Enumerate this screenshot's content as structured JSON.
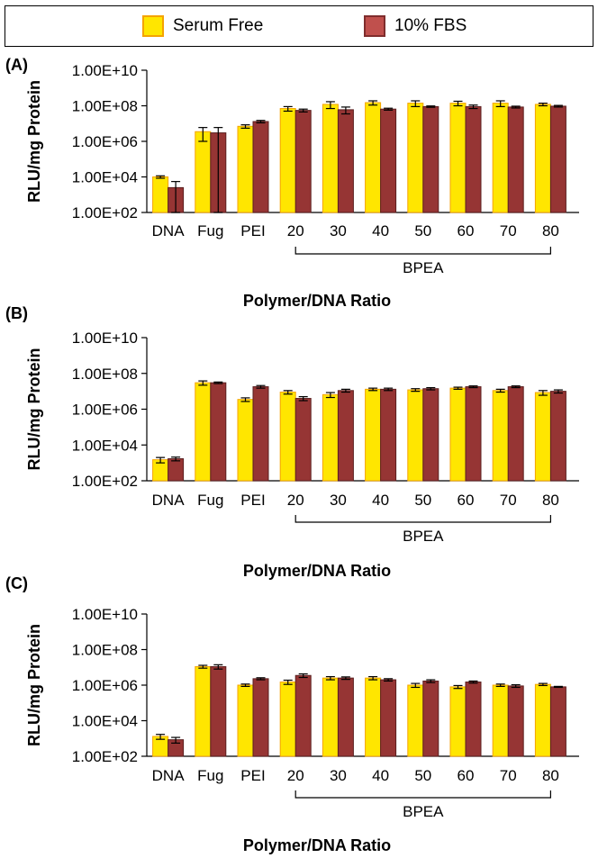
{
  "legend": [
    {
      "name": "Serum Free",
      "color": "#ffe600",
      "edge": "#f4a300"
    },
    {
      "name": "10% FBS",
      "color": "#c0504d",
      "edge": "#7f2d2d"
    }
  ],
  "colors": {
    "serum_free": "#ffe600",
    "serum_free_edge": "#f4a300",
    "fbs": "#963534",
    "fbs_edge": "#5a1f1f"
  },
  "chart_data": [
    {
      "type": "bar",
      "panel_label": "(A)",
      "ylabel": "RLU/mg Protein",
      "xlabel": "Polymer/DNA Ratio",
      "group_label": "BPEA",
      "yscale": "log",
      "ylim": [
        100,
        10000000000
      ],
      "yticks": [
        "1.00E+02",
        "1.00E+04",
        "1.00E+06",
        "1.00E+08",
        "1.00E+10"
      ],
      "categories": [
        "DNA",
        "Fug",
        "PEI",
        "20",
        "30",
        "40",
        "50",
        "60",
        "70",
        "80"
      ],
      "series": [
        {
          "name": "Serum Free",
          "values": [
            10000,
            3500000,
            7000000,
            70000000,
            120000000,
            150000000,
            140000000,
            140000000,
            140000000,
            120000000
          ],
          "errors": [
            1500,
            2500000,
            1500000,
            20000000,
            50000000,
            40000000,
            50000000,
            40000000,
            50000000,
            20000000
          ]
        },
        {
          "name": "10% FBS",
          "values": [
            2500,
            3000000,
            13000000,
            55000000,
            60000000,
            65000000,
            90000000,
            90000000,
            85000000,
            95000000
          ],
          "errors": [
            3000,
            3000000,
            2000000,
            10000000,
            25000000,
            8000000,
            8000000,
            20000000,
            10000000,
            10000000
          ]
        }
      ]
    },
    {
      "type": "bar",
      "panel_label": "(B)",
      "ylabel": "RLU/mg Protein",
      "xlabel": "Polymer/DNA Ratio",
      "group_label": "BPEA",
      "yscale": "log",
      "ylim": [
        100,
        10000000000
      ],
      "yticks": [
        "1.00E+02",
        "1.00E+04",
        "1.00E+06",
        "1.00E+08",
        "1.00E+10"
      ],
      "categories": [
        "DNA",
        "Fug",
        "PEI",
        "20",
        "30",
        "40",
        "50",
        "60",
        "70",
        "80"
      ],
      "series": [
        {
          "name": "Serum Free",
          "values": [
            1500,
            30000000,
            3500000,
            9000000,
            6500000,
            13000000,
            12000000,
            15000000,
            11000000,
            8500000
          ],
          "errors": [
            500,
            8000000,
            800000,
            2000000,
            2000000,
            2000000,
            2000000,
            2000000,
            2000000,
            2500000
          ]
        },
        {
          "name": "10% FBS",
          "values": [
            1700,
            30000000,
            18000000,
            4000000,
            11000000,
            13000000,
            14000000,
            18000000,
            18000000,
            10000000
          ],
          "errors": [
            400,
            3000000,
            3000000,
            1000000,
            2000000,
            2000000,
            2000000,
            2000000,
            2000000,
            2000000
          ]
        }
      ]
    },
    {
      "type": "bar",
      "panel_label": "(C)",
      "ylabel": "RLU/mg Protein",
      "xlabel": "Polymer/DNA Ratio",
      "group_label": "BPEA",
      "yscale": "log",
      "ylim": [
        100,
        10000000000
      ],
      "yticks": [
        "1.00E+02",
        "1.00E+04",
        "1.00E+06",
        "1.00E+08",
        "1.00E+10"
      ],
      "categories": [
        "DNA",
        "Fug",
        "PEI",
        "20",
        "30",
        "40",
        "50",
        "60",
        "70",
        "80"
      ],
      "series": [
        {
          "name": "Serum Free",
          "values": [
            1300,
            11000000,
            1000000,
            1500000,
            2500000,
            2500000,
            1000000,
            800000,
            1000000,
            1100000
          ],
          "errors": [
            400,
            2000000,
            150000,
            400000,
            500000,
            500000,
            250000,
            150000,
            150000,
            150000
          ]
        },
        {
          "name": "10% FBS",
          "values": [
            850,
            11000000,
            2300000,
            3500000,
            2500000,
            2000000,
            1700000,
            1500000,
            900000,
            800000
          ],
          "errors": [
            300,
            3000000,
            300000,
            800000,
            400000,
            300000,
            300000,
            200000,
            150000,
            50000
          ]
        }
      ]
    }
  ]
}
